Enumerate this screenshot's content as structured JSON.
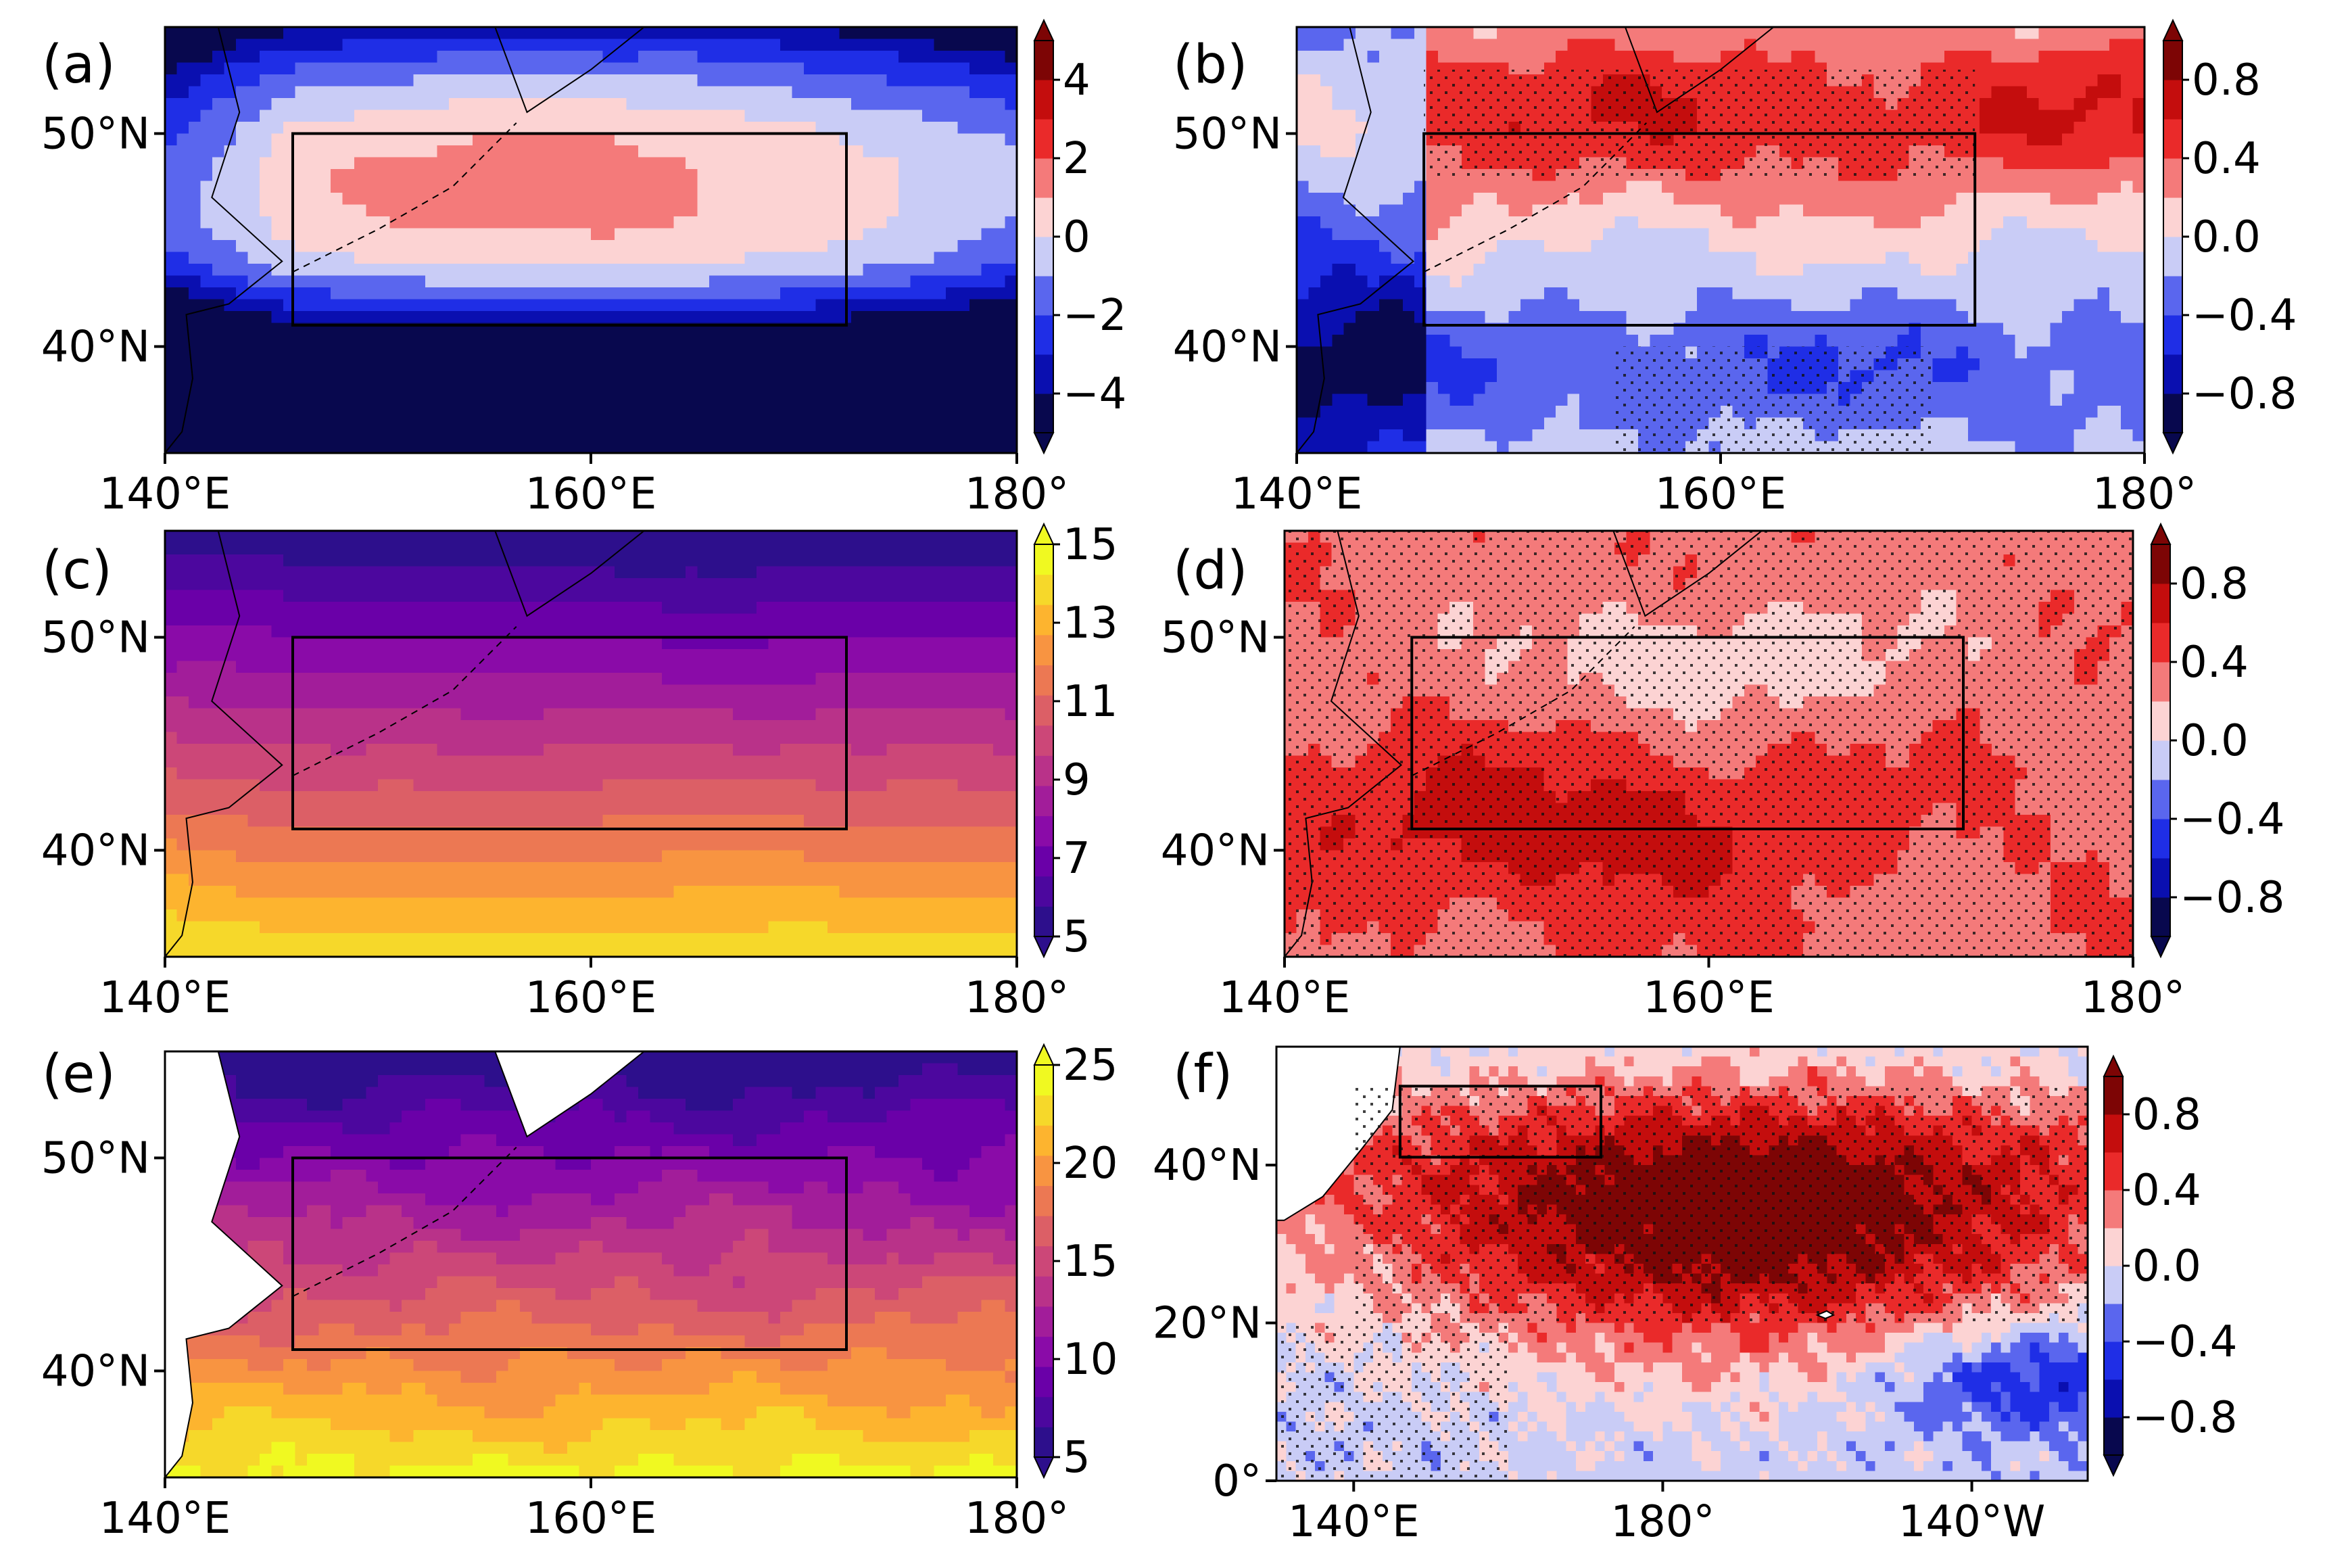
{
  "figure": "six-panel North Pacific map figure",
  "chart_data": [
    {
      "id": "a",
      "type": "heatmap",
      "panel_label": "(a)",
      "lon_range": [
        140,
        180
      ],
      "lat_range": [
        35,
        55
      ],
      "x_ticks": [
        "140°E",
        "160°E",
        "180°"
      ],
      "y_ticks": [
        "50°N",
        "40°N"
      ],
      "colorbar": {
        "ticks": [
          "4",
          "2",
          "0",
          "−2",
          "−4"
        ],
        "range": [
          -5,
          5
        ],
        "step": 1,
        "extend": "both",
        "palette": "bwr"
      },
      "box": {
        "lon": [
          146,
          172
        ],
        "lat": [
          41,
          50
        ]
      },
      "stippling": false,
      "land": "contoured"
    },
    {
      "id": "b",
      "type": "heatmap",
      "panel_label": "(b)",
      "lon_range": [
        140,
        180
      ],
      "lat_range": [
        35,
        55
      ],
      "x_ticks": [
        "140°E",
        "160°E",
        "180°"
      ],
      "y_ticks": [
        "50°N",
        "40°N"
      ],
      "colorbar": {
        "ticks": [
          "0.8",
          "0.4",
          "0.0",
          "−0.4",
          "−0.8"
        ],
        "range": [
          -1.0,
          1.0
        ],
        "step": 0.2,
        "extend": "both",
        "palette": "bwr"
      },
      "box": {
        "lon": [
          146,
          172
        ],
        "lat": [
          41,
          50
        ]
      },
      "stippling": true,
      "land": "contoured"
    },
    {
      "id": "c",
      "type": "heatmap",
      "panel_label": "(c)",
      "lon_range": [
        140,
        180
      ],
      "lat_range": [
        35,
        55
      ],
      "x_ticks": [
        "140°E",
        "160°E",
        "180°"
      ],
      "y_ticks": [
        "50°N",
        "40°N"
      ],
      "colorbar": {
        "ticks": [
          "15",
          "13",
          "11",
          "9",
          "7",
          "5"
        ],
        "range": [
          5,
          15
        ],
        "step": 1,
        "extend": "both",
        "palette": "plasma"
      },
      "box": {
        "lon": [
          146,
          172
        ],
        "lat": [
          41,
          50
        ]
      },
      "stippling": false,
      "land": "contoured"
    },
    {
      "id": "d",
      "type": "heatmap",
      "panel_label": "(d)",
      "lon_range": [
        140,
        180
      ],
      "lat_range": [
        35,
        55
      ],
      "x_ticks": [
        "140°E",
        "160°E",
        "180°"
      ],
      "y_ticks": [
        "50°N",
        "40°N"
      ],
      "colorbar": {
        "ticks": [
          "0.8",
          "0.4",
          "0.0",
          "−0.4",
          "−0.8"
        ],
        "range": [
          -1.0,
          1.0
        ],
        "step": 0.2,
        "extend": "both",
        "palette": "bwr"
      },
      "box": {
        "lon": [
          146,
          172
        ],
        "lat": [
          41,
          50
        ]
      },
      "stippling": true,
      "land": "contoured"
    },
    {
      "id": "e",
      "type": "heatmap",
      "panel_label": "(e)",
      "lon_range": [
        140,
        180
      ],
      "lat_range": [
        35,
        55
      ],
      "x_ticks": [
        "140°E",
        "160°E",
        "180°"
      ],
      "y_ticks": [
        "50°N",
        "40°N"
      ],
      "colorbar": {
        "ticks": [
          "25",
          "20",
          "15",
          "10",
          "5"
        ],
        "range": [
          5,
          25
        ],
        "step": 2,
        "extend": "both",
        "palette": "plasma"
      },
      "box": {
        "lon": [
          146,
          172
        ],
        "lat": [
          41,
          50
        ]
      },
      "stippling": false,
      "land": "white"
    },
    {
      "id": "f",
      "type": "heatmap",
      "panel_label": "(f)",
      "lon_range": [
        130,
        235
      ],
      "lat_range": [
        0,
        55
      ],
      "x_ticks": [
        "140°E",
        "180°",
        "140°W"
      ],
      "y_ticks": [
        "40°N",
        "20°N",
        "0°"
      ],
      "colorbar": {
        "ticks": [
          "0.8",
          "0.4",
          "0.0",
          "−0.4",
          "−0.8"
        ],
        "range": [
          -1.0,
          1.0
        ],
        "step": 0.2,
        "extend": "both",
        "palette": "bwr"
      },
      "box": {
        "lon": [
          146,
          172
        ],
        "lat": [
          41,
          50
        ]
      },
      "stippling": true,
      "land": "white"
    }
  ],
  "colors": {
    "bwr": [
      "#08084e",
      "#0a0fb0",
      "#1f2ee6",
      "#5a66ee",
      "#c9ccf6",
      "#fcd3d3",
      "#f47a7a",
      "#ea2a2a",
      "#c40d0d",
      "#7d0505"
    ],
    "plasma": [
      "#2d0f8c",
      "#4c079e",
      "#6a00a8",
      "#8a0ba8",
      "#a21d9a",
      "#b93289",
      "#cc4778",
      "#dc5f66",
      "#ec7853",
      "#f89441",
      "#fdb42f",
      "#f6d82a",
      "#f0f921"
    ]
  }
}
